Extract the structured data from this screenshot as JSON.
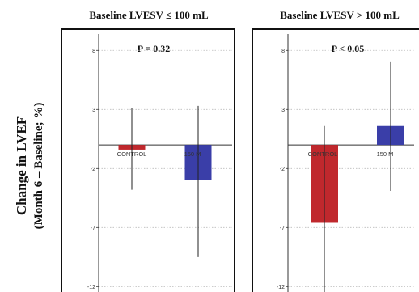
{
  "ylabel_line1": "Change in LVEF",
  "ylabel_line2": "(Month 6 – Baseline; %)",
  "colors": {
    "CONTROL": "#c0282d",
    "150 M": "#3a3ea8"
  },
  "chart_data": [
    {
      "type": "bar",
      "title": "Baseline LVESV ≤ 100 mL",
      "annotation": "P = 0.32",
      "categories": [
        "CONTROL",
        "150 M"
      ],
      "values": [
        -0.4,
        -3.0
      ],
      "error_low": [
        -3.8,
        -9.5
      ],
      "error_high": [
        3.1,
        3.3
      ],
      "ylim": [
        -12.8,
        9.8
      ],
      "yticks": [
        8,
        3,
        -2,
        -7,
        -12
      ],
      "grid": true
    },
    {
      "type": "bar",
      "title": "Baseline LVESV > 100 mL",
      "annotation": "P < 0.05",
      "categories": [
        "CONTROL",
        "150 M"
      ],
      "values": [
        -6.6,
        1.6
      ],
      "error_low": [
        -12.5,
        -3.9
      ],
      "error_high": [
        1.6,
        7.0
      ],
      "ylim": [
        -12.8,
        9.8
      ],
      "yticks": [
        8,
        3,
        -2,
        -7,
        -12
      ],
      "grid": true
    }
  ]
}
